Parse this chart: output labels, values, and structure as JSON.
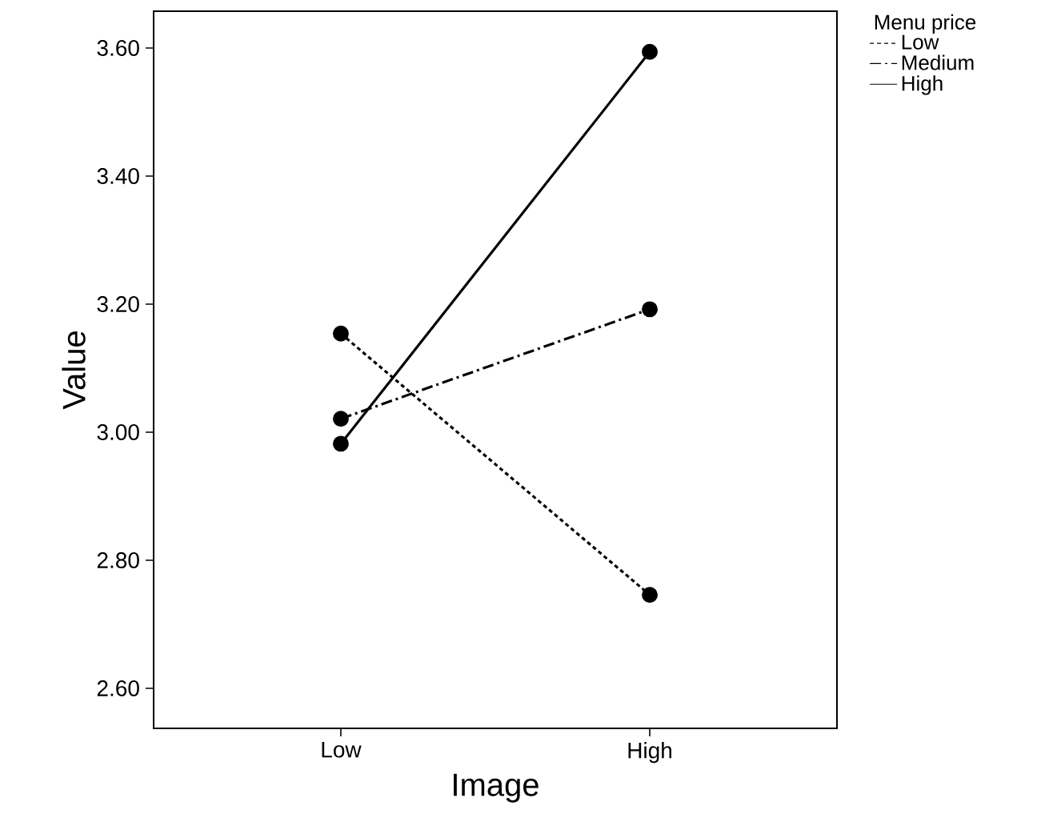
{
  "chart_data": {
    "type": "line",
    "xlabel": "Image",
    "ylabel": "Value",
    "legend_title": "Menu price",
    "categories": [
      "Low",
      "High"
    ],
    "series": [
      {
        "name": "Low",
        "color": "#000000",
        "line_style": "dotted",
        "values": [
          3.154,
          2.746
        ]
      },
      {
        "name": "Medium",
        "color": "#000000",
        "line_style": "dashed",
        "values": [
          3.021,
          3.192
        ]
      },
      {
        "name": "High",
        "color": "#000000",
        "line_style": "solid",
        "values": [
          2.982,
          3.594
        ]
      }
    ],
    "ylim": [
      2.5375,
      3.6575
    ],
    "yticks": [
      {
        "value": 2.6,
        "label": "2.60"
      },
      {
        "value": 2.8,
        "label": "2.80"
      },
      {
        "value": 3.0,
        "label": "3.00"
      },
      {
        "value": 3.2,
        "label": "3.20"
      },
      {
        "value": 3.4,
        "label": "3.40"
      },
      {
        "value": 3.6,
        "label": "3.60"
      }
    ],
    "marker": "circle",
    "grid": false,
    "legend": "right"
  }
}
